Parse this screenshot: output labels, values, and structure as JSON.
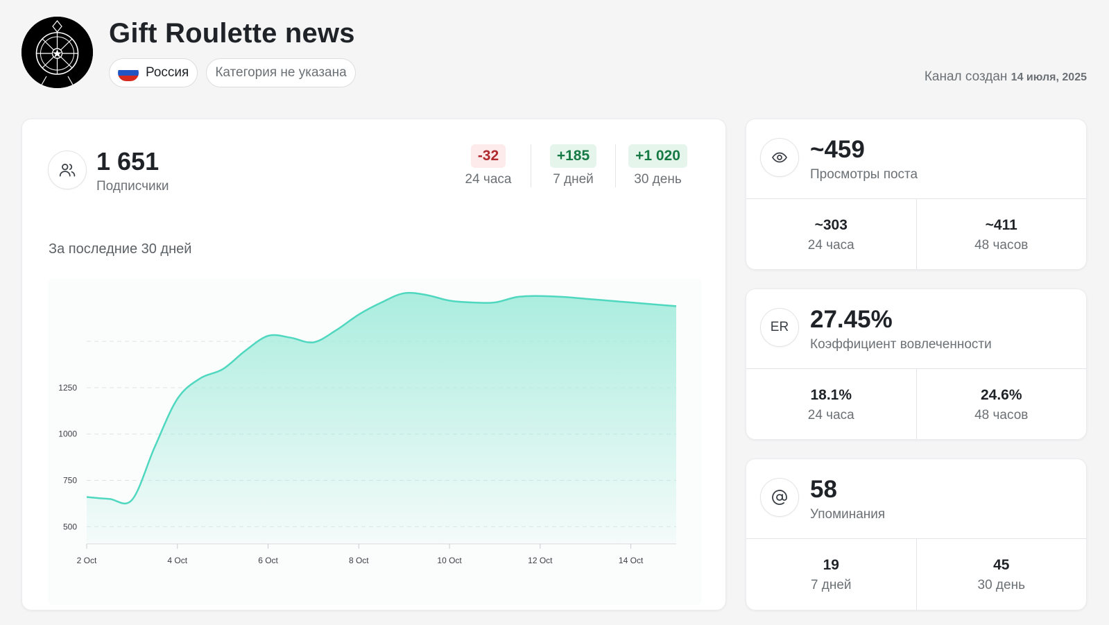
{
  "channel": {
    "title": "Gift Roulette news",
    "country": "Россия",
    "category": "Категория не указана",
    "created_label": "Канал создан",
    "created_date": "14 июля, 2025"
  },
  "subscribers": {
    "value": "1 651",
    "label": "Подписчики",
    "deltas": [
      {
        "value": "-32",
        "label": "24 часа",
        "trend": "negative"
      },
      {
        "value": "+185",
        "label": "7 дней",
        "trend": "positive"
      },
      {
        "value": "+1 020",
        "label": "30 день",
        "trend": "positive"
      }
    ],
    "chart_title": "За последние 30 дней"
  },
  "views": {
    "value": "~459",
    "label": "Просмотры поста",
    "sub": [
      {
        "value": "~303",
        "label": "24 часа"
      },
      {
        "value": "~411",
        "label": "48 часов"
      }
    ]
  },
  "er": {
    "icon_text": "ER",
    "value": "27.45%",
    "label": "Коэффициент вовлеченности",
    "sub": [
      {
        "value": "18.1%",
        "label": "24 часа"
      },
      {
        "value": "24.6%",
        "label": "48 часов"
      }
    ]
  },
  "mentions": {
    "value": "58",
    "label": "Упоминания",
    "sub": [
      {
        "value": "19",
        "label": "7 дней"
      },
      {
        "value": "45",
        "label": "30 день"
      }
    ]
  },
  "colors": {
    "line": "#4fd8bf",
    "fill_top": "#a6ecdd",
    "negative": "#b0292f",
    "positive": "#177a45",
    "flag": [
      "#ffffff",
      "#2255c4",
      "#d52b1e"
    ]
  },
  "chart_data": {
    "type": "area",
    "x": [
      "2 Oct",
      "2.5 Oct",
      "3 Oct",
      "3.5 Oct",
      "4 Oct",
      "4.5 Oct",
      "5 Oct",
      "5.5 Oct",
      "6 Oct",
      "6.5 Oct",
      "7 Oct",
      "7.5 Oct",
      "8 Oct",
      "8.5 Oct",
      "9 Oct",
      "9.5 Oct",
      "10 Oct",
      "10.5 Oct",
      "11 Oct",
      "11.5 Oct",
      "12 Oct",
      "12.5 Oct",
      "13 Oct",
      "13.5 Oct",
      "14 Oct",
      "14.5 Oct",
      "15 Oct"
    ],
    "x_numeric": [
      2,
      2.5,
      3,
      3.5,
      4,
      4.5,
      5,
      5.5,
      6,
      6.5,
      7,
      7.5,
      8,
      8.5,
      9,
      9.5,
      10,
      10.5,
      11,
      11.5,
      12,
      12.5,
      13,
      13.5,
      14,
      14.5,
      15
    ],
    "values": [
      660,
      650,
      645,
      930,
      1190,
      1300,
      1350,
      1450,
      1530,
      1520,
      1495,
      1560,
      1645,
      1710,
      1760,
      1750,
      1720,
      1710,
      1710,
      1740,
      1745,
      1740,
      1730,
      1720,
      1710,
      1700,
      1690
    ],
    "x_ticks": [
      2,
      4,
      6,
      8,
      10,
      12,
      14
    ],
    "x_tick_labels": [
      "2 Oct",
      "4 Oct",
      "6 Oct",
      "8 Oct",
      "10 Oct",
      "12 Oct",
      "14 Oct"
    ],
    "y_ticks": [
      500,
      750,
      1000,
      1250
    ],
    "ylim": [
      415,
      1800
    ],
    "xlim": [
      2,
      15
    ],
    "grid": true,
    "title": "За последние 30 дней",
    "xlabel": "",
    "ylabel": ""
  }
}
